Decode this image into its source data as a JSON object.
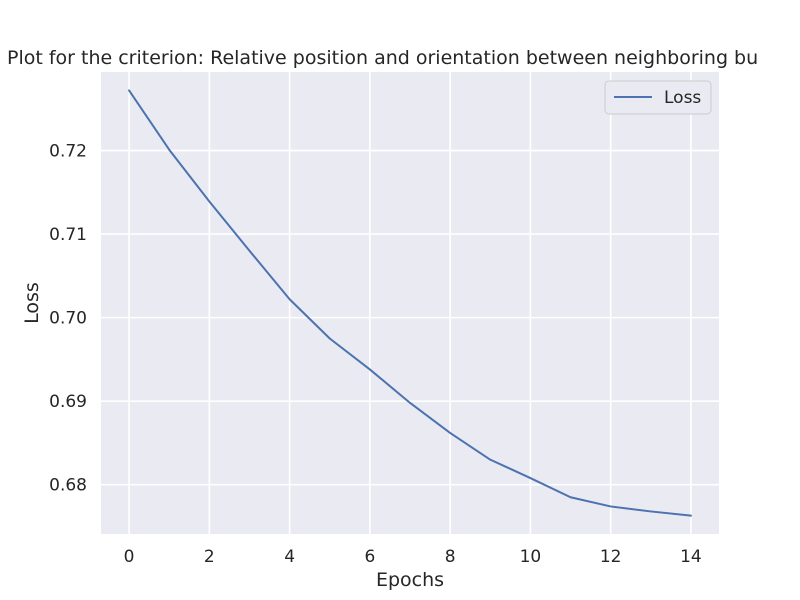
{
  "chart_data": {
    "type": "line",
    "title": "Plot for the criterion: Relative position and orientation between neighboring bu",
    "xlabel": "Epochs",
    "ylabel": "Loss",
    "x": [
      0,
      1,
      2,
      3,
      4,
      5,
      6,
      7,
      8,
      9,
      10,
      11,
      12,
      13,
      14
    ],
    "series": [
      {
        "name": "Loss",
        "color": "#4c72b0",
        "values": [
          0.7272,
          0.7201,
          0.7139,
          0.708,
          0.7022,
          0.6975,
          0.6938,
          0.6898,
          0.6862,
          0.683,
          0.6808,
          0.6785,
          0.6774,
          0.6768,
          0.6763
        ]
      }
    ],
    "xlim": [
      -0.7,
      14.7
    ],
    "ylim": [
      0.6741,
      0.7294
    ],
    "xticks": [
      0,
      2,
      4,
      6,
      8,
      10,
      12,
      14
    ],
    "xtick_labels": [
      "0",
      "2",
      "4",
      "6",
      "8",
      "10",
      "12",
      "14"
    ],
    "yticks": [
      0.68,
      0.69,
      0.7,
      0.71,
      0.72
    ],
    "ytick_labels": [
      "0.68",
      "0.69",
      "0.70",
      "0.71",
      "0.72"
    ],
    "grid": true,
    "legend": "top-right",
    "background": "#eaeaf2",
    "grid_color": "#ffffff"
  }
}
